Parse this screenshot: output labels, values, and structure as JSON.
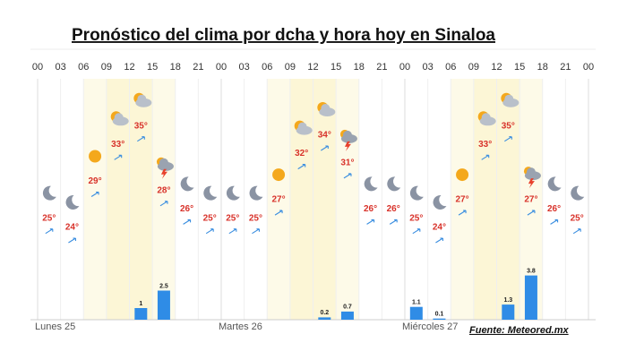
{
  "title": "Pronóstico del clima por dcha y hora hoy en Sinaloa",
  "hours": [
    "00",
    "03",
    "06",
    "09",
    "12",
    "15",
    "18",
    "21",
    "00",
    "03",
    "06",
    "09",
    "12",
    "15",
    "18",
    "21",
    "00",
    "03",
    "06",
    "09",
    "12",
    "15",
    "18",
    "21",
    "00"
  ],
  "days": [
    {
      "label": "Lunes 25",
      "temps": [
        {
          "value": 25,
          "label": "25°"
        },
        {
          "value": 24,
          "label": "24°"
        },
        {
          "value": 29,
          "label": "29°"
        },
        {
          "value": 33,
          "label": "33°"
        },
        {
          "value": 35,
          "label": "35°"
        },
        {
          "value": 28,
          "label": "28°"
        },
        {
          "value": 26,
          "label": "26°"
        },
        {
          "value": 25,
          "label": "25°"
        }
      ],
      "precip": [
        null,
        null,
        null,
        null,
        1,
        2.5,
        null,
        null
      ]
    },
    {
      "label": "Martes 26",
      "temps": [
        {
          "value": 25,
          "label": "25°"
        },
        {
          "value": 25,
          "label": "25°"
        },
        {
          "value": 27,
          "label": "27°"
        },
        {
          "value": 32,
          "label": "32°"
        },
        {
          "value": 34,
          "label": "34°"
        },
        {
          "value": 31,
          "label": "31°"
        },
        {
          "value": 26,
          "label": "26°"
        },
        {
          "value": 26,
          "label": "26°"
        }
      ],
      "precip": [
        null,
        null,
        null,
        null,
        0.2,
        0.7,
        null,
        null
      ]
    },
    {
      "label": "Miércoles 27",
      "temps": [
        {
          "value": 25,
          "label": "25°"
        },
        {
          "value": 24,
          "label": "24°"
        },
        {
          "value": 27,
          "label": "27°"
        },
        {
          "value": 33,
          "label": "33°"
        },
        {
          "value": 35,
          "label": "35°"
        },
        {
          "value": 27,
          "label": "27°"
        },
        {
          "value": 26,
          "label": "26°"
        },
        {
          "value": 25,
          "label": "25°"
        }
      ],
      "precip": [
        1.1,
        0.1,
        null,
        null,
        1.3,
        3.8,
        null,
        null
      ]
    }
  ],
  "source": "Fuente: Meteored.mx"
}
